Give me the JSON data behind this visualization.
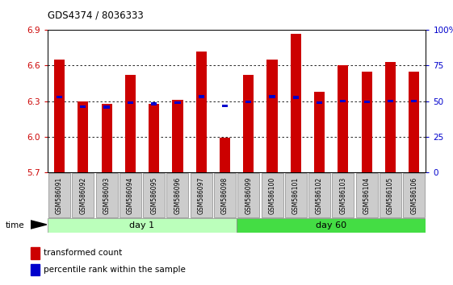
{
  "title": "GDS4374 / 8036333",
  "samples": [
    "GSM586091",
    "GSM586092",
    "GSM586093",
    "GSM586094",
    "GSM586095",
    "GSM586096",
    "GSM586097",
    "GSM586098",
    "GSM586099",
    "GSM586100",
    "GSM586101",
    "GSM586102",
    "GSM586103",
    "GSM586104",
    "GSM586105",
    "GSM586106"
  ],
  "red_values": [
    6.65,
    6.3,
    6.28,
    6.52,
    6.28,
    6.31,
    6.72,
    5.99,
    6.52,
    6.65,
    6.87,
    6.38,
    6.6,
    6.55,
    6.63,
    6.55
  ],
  "blue_values": [
    6.335,
    6.255,
    6.25,
    6.29,
    6.278,
    6.288,
    6.338,
    6.262,
    6.293,
    6.338,
    6.332,
    6.288,
    6.3,
    6.296,
    6.3,
    6.3
  ],
  "ymin": 5.7,
  "ymax": 6.9,
  "yticks_left": [
    5.7,
    6.0,
    6.3,
    6.6,
    6.9
  ],
  "yticks_right": [
    0,
    25,
    50,
    75,
    100
  ],
  "day1_samples": 8,
  "day60_samples": 8,
  "day1_label": "day 1",
  "day60_label": "day 60",
  "bar_color": "#cc0000",
  "blue_color": "#0000cc",
  "background_color": "#ffffff",
  "plot_bg": "#ffffff",
  "time_label": "time",
  "legend_red": "transformed count",
  "legend_blue": "percentile rank within the sample",
  "day1_bg": "#bbffbb",
  "day60_bg": "#44dd44",
  "xlabel_color": "#cc0000",
  "right_axis_color": "#0000cc"
}
